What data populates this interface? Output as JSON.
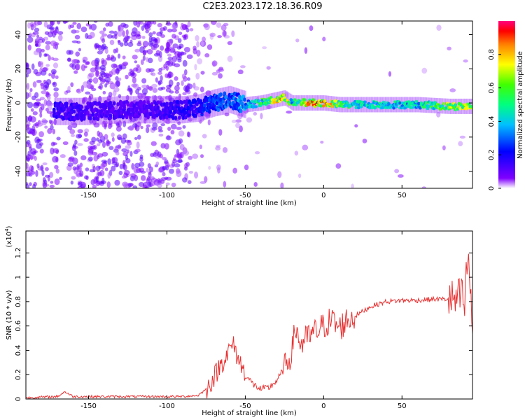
{
  "title": "C2E3.2023.172.18.36.R09",
  "chart_data": [
    {
      "type": "heatmap",
      "title": "C2E3.2023.172.18.36.R09",
      "xlabel": "Height of straight line (km)",
      "ylabel": "Frequency (Hz)",
      "xlim": [
        -190,
        95
      ],
      "ylim": [
        -50,
        48
      ],
      "xticks": [
        -150,
        -100,
        -50,
        0,
        50
      ],
      "yticks": [
        -40,
        -20,
        0,
        20,
        40
      ],
      "grid": false,
      "ridge": {
        "x": [
          -170,
          -150,
          -130,
          -110,
          -90,
          -80,
          -70,
          -60,
          -50,
          -40,
          -30,
          -25,
          -20,
          -10,
          0,
          10,
          20,
          40,
          60,
          80,
          95
        ],
        "frequency": [
          -5,
          -5,
          -4,
          -4,
          -4,
          -3,
          0,
          2,
          -1,
          0,
          2,
          3,
          0,
          0,
          0,
          -1,
          -1,
          -1,
          -1,
          -2,
          -2
        ],
        "amplitude": [
          0.2,
          0.15,
          0.15,
          0.15,
          0.2,
          0.25,
          0.3,
          0.35,
          0.4,
          0.6,
          0.8,
          0.9,
          0.5,
          0.9,
          0.95,
          0.7,
          0.55,
          0.5,
          0.5,
          0.75,
          0.8
        ]
      },
      "colorbar": {
        "label": "Normalized spectral amplitude",
        "ticks": [
          0.0,
          0.2,
          0.4,
          0.6,
          0.8
        ],
        "range": [
          0,
          1
        ],
        "colors": [
          "#ffffff",
          "#8000ff",
          "#0000ff",
          "#00c0ff",
          "#00ff80",
          "#40ff00",
          "#ffff00",
          "#ff8000",
          "#ff0000",
          "#ff0080"
        ]
      }
    },
    {
      "type": "line",
      "xlabel": "Height of straight line (km)",
      "ylabel": "SNR (10 * v/v)",
      "yscale_label": "(x10",
      "yscale_exp": "4",
      "yscale_close": ")",
      "xlim": [
        -190,
        95
      ],
      "ylim": [
        0,
        1.38
      ],
      "xticks": [
        -150,
        -100,
        -50,
        0,
        50
      ],
      "yticks": [
        0.0,
        0.2,
        0.4,
        0.6,
        0.8,
        1.0,
        1.2
      ],
      "color": "#e83030",
      "grid": false,
      "x": [
        -190,
        -170,
        -165,
        -160,
        -140,
        -120,
        -100,
        -90,
        -80,
        -75,
        -70,
        -65,
        -60,
        -58,
        -55,
        -50,
        -45,
        -40,
        -35,
        -30,
        -25,
        -20,
        -18,
        -15,
        -10,
        -5,
        0,
        5,
        10,
        15,
        20,
        25,
        30,
        40,
        50,
        60,
        70,
        80,
        85,
        88,
        90,
        92,
        95
      ],
      "y": [
        0.01,
        0.02,
        0.06,
        0.02,
        0.02,
        0.02,
        0.02,
        0.02,
        0.03,
        0.08,
        0.18,
        0.3,
        0.4,
        0.45,
        0.35,
        0.2,
        0.12,
        0.08,
        0.09,
        0.15,
        0.25,
        0.4,
        0.6,
        0.45,
        0.5,
        0.55,
        0.6,
        0.65,
        0.58,
        0.65,
        0.68,
        0.72,
        0.76,
        0.8,
        0.81,
        0.81,
        0.82,
        0.82,
        0.8,
        0.85,
        0.75,
        1.2,
        0.6
      ]
    }
  ]
}
